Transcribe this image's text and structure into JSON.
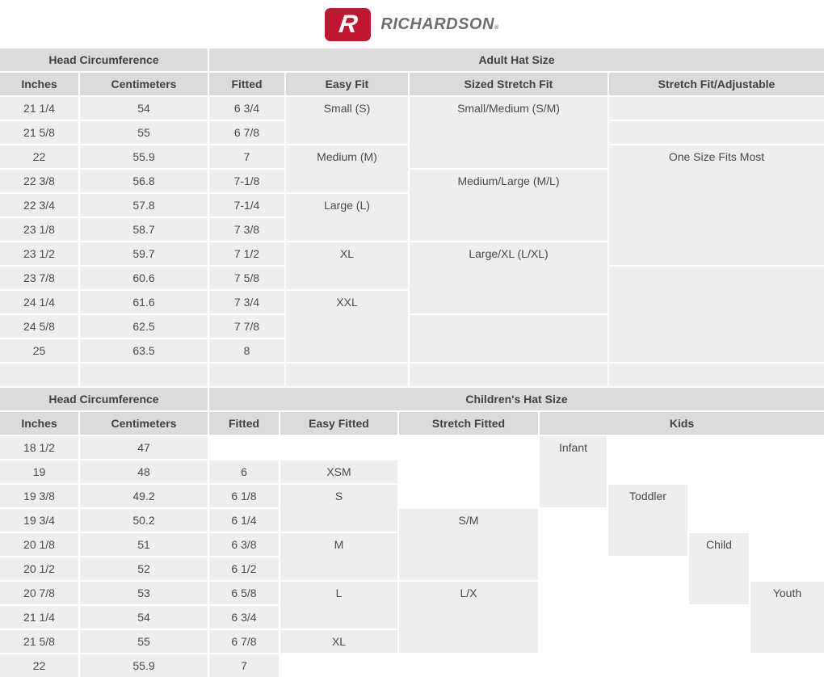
{
  "brand": {
    "logo_letter": "R",
    "name": "RICHARDSON",
    "trademark": "®",
    "logo_red": "#c01732",
    "logo_gray": "#6d6e71"
  },
  "colors": {
    "header_cell_bg": "#dbdbdb",
    "body_cell_bg": "#eeeeee",
    "text": "#4c4a48",
    "grid_gap": "#ffffff"
  },
  "tables": {
    "adult": {
      "title_left": "Head Circumference",
      "title_right": "Adult Hat Size",
      "columns": [
        "Inches",
        "Centimeters",
        "Fitted",
        "Easy Fit",
        "Sized Stretch Fit",
        "Stretch Fit/Adjustable"
      ],
      "cells": [
        {
          "t": "Head Circumference",
          "c": 1,
          "cs": 2,
          "r": 1,
          "k": "head",
          "n": "adult-head-circumference-header"
        },
        {
          "t": "Adult Hat Size",
          "c": 3,
          "cs": 4,
          "r": 1,
          "k": "head",
          "n": "adult-hat-size-header"
        },
        {
          "t": "Inches",
          "c": 1,
          "r": 2,
          "k": "head",
          "n": "column-header-inches"
        },
        {
          "t": "Centimeters",
          "c": 2,
          "r": 2,
          "k": "head",
          "n": "column-header-centimeters"
        },
        {
          "t": "Fitted",
          "c": 3,
          "r": 2,
          "k": "head",
          "n": "column-header-fitted"
        },
        {
          "t": "Easy Fit",
          "c": 4,
          "r": 2,
          "k": "head",
          "n": "column-header-easy-fit"
        },
        {
          "t": "Sized Stretch Fit",
          "c": 5,
          "r": 2,
          "k": "head",
          "n": "column-header-sized-stretch-fit"
        },
        {
          "t": "Stretch Fit/Adjustable",
          "c": 6,
          "r": 2,
          "k": "head",
          "n": "column-header-stretch-fit-adjustable"
        },
        {
          "t": "21 1/4",
          "c": 1,
          "r": 3
        },
        {
          "t": "21 5/8",
          "c": 1,
          "r": 4
        },
        {
          "t": "22",
          "c": 1,
          "r": 5
        },
        {
          "t": "22 3/8",
          "c": 1,
          "r": 6
        },
        {
          "t": "22 3/4",
          "c": 1,
          "r": 7
        },
        {
          "t": "23 1/8",
          "c": 1,
          "r": 8
        },
        {
          "t": "23 1/2",
          "c": 1,
          "r": 9
        },
        {
          "t": "23 7/8",
          "c": 1,
          "r": 10
        },
        {
          "t": "24 1/4",
          "c": 1,
          "r": 11
        },
        {
          "t": "24 5/8",
          "c": 1,
          "r": 12
        },
        {
          "t": "25",
          "c": 1,
          "r": 13
        },
        {
          "t": "",
          "c": 1,
          "r": 14
        },
        {
          "t": "54",
          "c": 2,
          "r": 3
        },
        {
          "t": "55",
          "c": 2,
          "r": 4
        },
        {
          "t": "55.9",
          "c": 2,
          "r": 5
        },
        {
          "t": "56.8",
          "c": 2,
          "r": 6
        },
        {
          "t": "57.8",
          "c": 2,
          "r": 7
        },
        {
          "t": "58.7",
          "c": 2,
          "r": 8
        },
        {
          "t": "59.7",
          "c": 2,
          "r": 9
        },
        {
          "t": "60.6",
          "c": 2,
          "r": 10
        },
        {
          "t": "61.6",
          "c": 2,
          "r": 11
        },
        {
          "t": "62.5",
          "c": 2,
          "r": 12
        },
        {
          "t": "63.5",
          "c": 2,
          "r": 13
        },
        {
          "t": "",
          "c": 2,
          "r": 14
        },
        {
          "t": "6 3/4",
          "c": 3,
          "r": 3
        },
        {
          "t": "6 7/8",
          "c": 3,
          "r": 4
        },
        {
          "t": "7",
          "c": 3,
          "r": 5
        },
        {
          "t": "7-1/8",
          "c": 3,
          "r": 6
        },
        {
          "t": "7-1/4",
          "c": 3,
          "r": 7
        },
        {
          "t": "7 3/8",
          "c": 3,
          "r": 8
        },
        {
          "t": "7 1/2",
          "c": 3,
          "r": 9
        },
        {
          "t": "7 5/8",
          "c": 3,
          "r": 10
        },
        {
          "t": "7 3/4",
          "c": 3,
          "r": 11
        },
        {
          "t": "7 7/8",
          "c": 3,
          "r": 12
        },
        {
          "t": "8",
          "c": 3,
          "r": 13
        },
        {
          "t": "",
          "c": 3,
          "r": 14
        },
        {
          "t": "Small (S)",
          "c": 4,
          "r": 3,
          "rs": 2
        },
        {
          "t": "Medium (M)",
          "c": 4,
          "r": 5,
          "rs": 2
        },
        {
          "t": "Large (L)",
          "c": 4,
          "r": 7,
          "rs": 2
        },
        {
          "t": "XL",
          "c": 4,
          "r": 9,
          "rs": 2
        },
        {
          "t": "XXL",
          "c": 4,
          "r": 11,
          "rs": 3
        },
        {
          "t": "",
          "c": 4,
          "r": 14
        },
        {
          "t": "Small/Medium (S/M)",
          "c": 5,
          "r": 3,
          "rs": 3
        },
        {
          "t": "Medium/Large (M/L)",
          "c": 5,
          "r": 6,
          "rs": 3
        },
        {
          "t": "Large/XL (L/XL)",
          "c": 5,
          "r": 9,
          "rs": 3
        },
        {
          "t": "",
          "c": 5,
          "r": 12,
          "rs": 2
        },
        {
          "t": "",
          "c": 5,
          "r": 14
        },
        {
          "t": "",
          "c": 6,
          "r": 3
        },
        {
          "t": "",
          "c": 6,
          "r": 4
        },
        {
          "t": "One Size Fits Most",
          "c": 6,
          "r": 5,
          "rs": 5
        },
        {
          "t": "",
          "c": 6,
          "r": 10,
          "rs": 4
        },
        {
          "t": "",
          "c": 6,
          "r": 14
        }
      ]
    },
    "children": {
      "title_left": "Head Circumference",
      "title_right": "Children's Hat Size",
      "columns": [
        "Inches",
        "Centimeters",
        "Fitted",
        "Easy Fitted",
        "Stretch Fitted",
        "Kids"
      ],
      "cells": [
        {
          "t": "Head Circumference",
          "c": 1,
          "cs": 2,
          "r": 1,
          "k": "head",
          "n": "children-head-circumference-header"
        },
        {
          "t": "Children's Hat Size",
          "c": 3,
          "cs": 7,
          "r": 1,
          "k": "head",
          "n": "children-hat-size-header"
        },
        {
          "t": "Inches",
          "c": 1,
          "r": 2,
          "k": "head",
          "n": "column-header-inches"
        },
        {
          "t": "Centimeters",
          "c": 2,
          "r": 2,
          "k": "head",
          "n": "column-header-centimeters"
        },
        {
          "t": "Fitted",
          "c": 3,
          "r": 2,
          "k": "head",
          "n": "column-header-fitted"
        },
        {
          "t": "Easy Fitted",
          "c": 4,
          "r": 2,
          "k": "head",
          "n": "column-header-easy-fitted"
        },
        {
          "t": "Stretch Fitted",
          "c": 5,
          "r": 2,
          "k": "head",
          "n": "column-header-stretch-fitted"
        },
        {
          "t": "Kids",
          "c": 6,
          "cs": 4,
          "r": 2,
          "k": "head",
          "n": "column-header-kids"
        },
        {
          "t": "18 1/2",
          "c": 1,
          "r": 3
        },
        {
          "t": "19",
          "c": 1,
          "r": 4
        },
        {
          "t": "19 3/8",
          "c": 1,
          "r": 5
        },
        {
          "t": "19 3/4",
          "c": 1,
          "r": 6
        },
        {
          "t": "20 1/8",
          "c": 1,
          "r": 7
        },
        {
          "t": "20 1/2",
          "c": 1,
          "r": 8
        },
        {
          "t": "20 7/8",
          "c": 1,
          "r": 9
        },
        {
          "t": "21 1/4",
          "c": 1,
          "r": 10
        },
        {
          "t": "21 5/8",
          "c": 1,
          "r": 11
        },
        {
          "t": "22",
          "c": 1,
          "r": 12
        },
        {
          "t": "47",
          "c": 2,
          "r": 3
        },
        {
          "t": "48",
          "c": 2,
          "r": 4
        },
        {
          "t": "49.2",
          "c": 2,
          "r": 5
        },
        {
          "t": "50.2",
          "c": 2,
          "r": 6
        },
        {
          "t": "51",
          "c": 2,
          "r": 7
        },
        {
          "t": "52",
          "c": 2,
          "r": 8
        },
        {
          "t": "53",
          "c": 2,
          "r": 9
        },
        {
          "t": "54",
          "c": 2,
          "r": 10
        },
        {
          "t": "55",
          "c": 2,
          "r": 11
        },
        {
          "t": "55.9",
          "c": 2,
          "r": 12
        },
        {
          "t": "6",
          "c": 3,
          "r": 4
        },
        {
          "t": "6 1/8",
          "c": 3,
          "r": 5
        },
        {
          "t": "6 1/4",
          "c": 3,
          "r": 6
        },
        {
          "t": "6 3/8",
          "c": 3,
          "r": 7
        },
        {
          "t": "6 1/2",
          "c": 3,
          "r": 8
        },
        {
          "t": "6 5/8",
          "c": 3,
          "r": 9
        },
        {
          "t": "6 3/4",
          "c": 3,
          "r": 10
        },
        {
          "t": "6 7/8",
          "c": 3,
          "r": 11
        },
        {
          "t": "7",
          "c": 3,
          "r": 12
        },
        {
          "t": "XSM",
          "c": 4,
          "r": 4
        },
        {
          "t": "S",
          "c": 4,
          "r": 5,
          "rs": 2
        },
        {
          "t": "M",
          "c": 4,
          "r": 7,
          "rs": 2
        },
        {
          "t": "L",
          "c": 4,
          "r": 9,
          "rs": 2
        },
        {
          "t": "XL",
          "c": 4,
          "r": 11
        },
        {
          "t": "S/M",
          "c": 5,
          "r": 6,
          "rs": 3
        },
        {
          "t": "L/X",
          "c": 5,
          "r": 9,
          "rs": 3
        },
        {
          "t": "Infant",
          "c": 6,
          "r": 3,
          "rs": 3,
          "n": "kids-cell-infant"
        },
        {
          "t": "Toddler",
          "c": 7,
          "r": 5,
          "rs": 3,
          "n": "kids-cell-toddler"
        },
        {
          "t": "Child",
          "c": 8,
          "r": 7,
          "rs": 3,
          "n": "kids-cell-child"
        },
        {
          "t": "Youth",
          "c": 9,
          "r": 9,
          "rs": 3,
          "n": "kids-cell-youth"
        }
      ]
    }
  }
}
